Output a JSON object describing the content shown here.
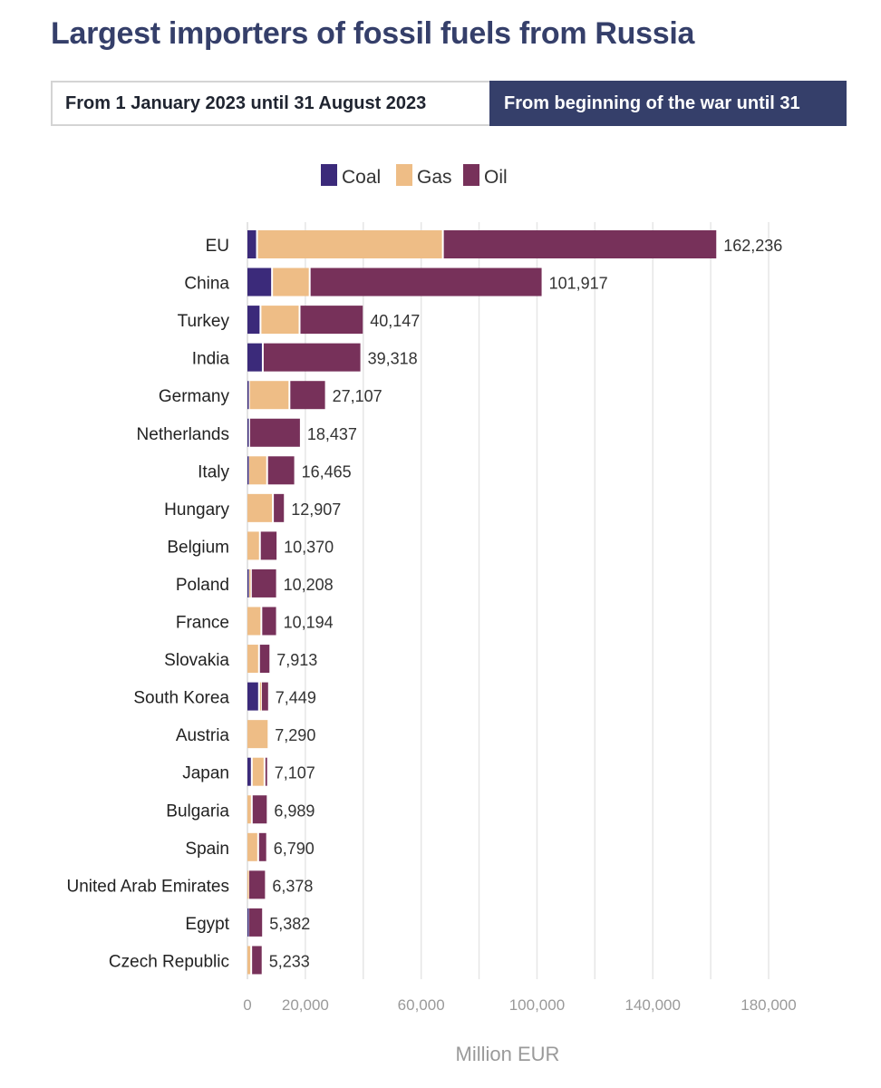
{
  "title": "Largest importers of fossil fuels from Russia",
  "tabs": [
    {
      "label": "From 1 January 2023 until 31 August 2023",
      "active": false
    },
    {
      "label": "From beginning of the war until 31",
      "active": true
    }
  ],
  "colors": {
    "coal": "#3b2a7a",
    "gas": "#eebd86",
    "oil": "#77315a",
    "tab_active": "#353f6a",
    "title": "#353f6a"
  },
  "chart_data": {
    "type": "bar",
    "orientation": "horizontal",
    "stacked": true,
    "xlabel": "Million EUR",
    "xlim": [
      0,
      180000
    ],
    "xticks": [
      0,
      20000,
      60000,
      100000,
      140000,
      180000
    ],
    "xtick_labels": [
      "0",
      "20,000",
      "60,000",
      "100,000",
      "140,000",
      "180,000"
    ],
    "grid": true,
    "legend_position": "top",
    "categories": [
      "EU",
      "China",
      "Turkey",
      "India",
      "Germany",
      "Netherlands",
      "Italy",
      "Hungary",
      "Belgium",
      "Poland",
      "France",
      "Slovakia",
      "South Korea",
      "Austria",
      "Japan",
      "Bulgaria",
      "Spain",
      "United Arab Emirates",
      "Egypt",
      "Czech Republic"
    ],
    "series": [
      {
        "name": "Coal",
        "color": "#3b2a7a",
        "values": [
          3300,
          8500,
          4500,
          5300,
          500,
          600,
          300,
          0,
          0,
          300,
          0,
          0,
          4000,
          0,
          1500,
          0,
          0,
          0,
          300,
          0
        ]
      },
      {
        "name": "Gas",
        "color": "#eebd86",
        "values": [
          64200,
          13000,
          13500,
          0,
          14000,
          0,
          6500,
          8800,
          4300,
          900,
          4800,
          4000,
          700,
          7290,
          4400,
          1500,
          3700,
          300,
          0,
          1300
        ]
      },
      {
        "name": "Oil",
        "color": "#77315a",
        "values": [
          94736,
          80417,
          22147,
          34018,
          12607,
          17837,
          9665,
          4107,
          6070,
          9008,
          5394,
          3913,
          2749,
          0,
          1207,
          5489,
          3090,
          6078,
          5082,
          3933
        ]
      }
    ],
    "totals": [
      162236,
      101917,
      40147,
      39318,
      27107,
      18437,
      16465,
      12907,
      10370,
      10208,
      10194,
      7913,
      7449,
      7290,
      7107,
      6989,
      6790,
      6378,
      5382,
      5233
    ],
    "total_labels": [
      "162,236",
      "101,917",
      "40,147",
      "39,318",
      "27,107",
      "18,437",
      "16,465",
      "12,907",
      "10,370",
      "10,208",
      "10,194",
      "7,913",
      "7,449",
      "7,290",
      "7,107",
      "6,989",
      "6,790",
      "6,378",
      "5,382",
      "5,233"
    ]
  }
}
